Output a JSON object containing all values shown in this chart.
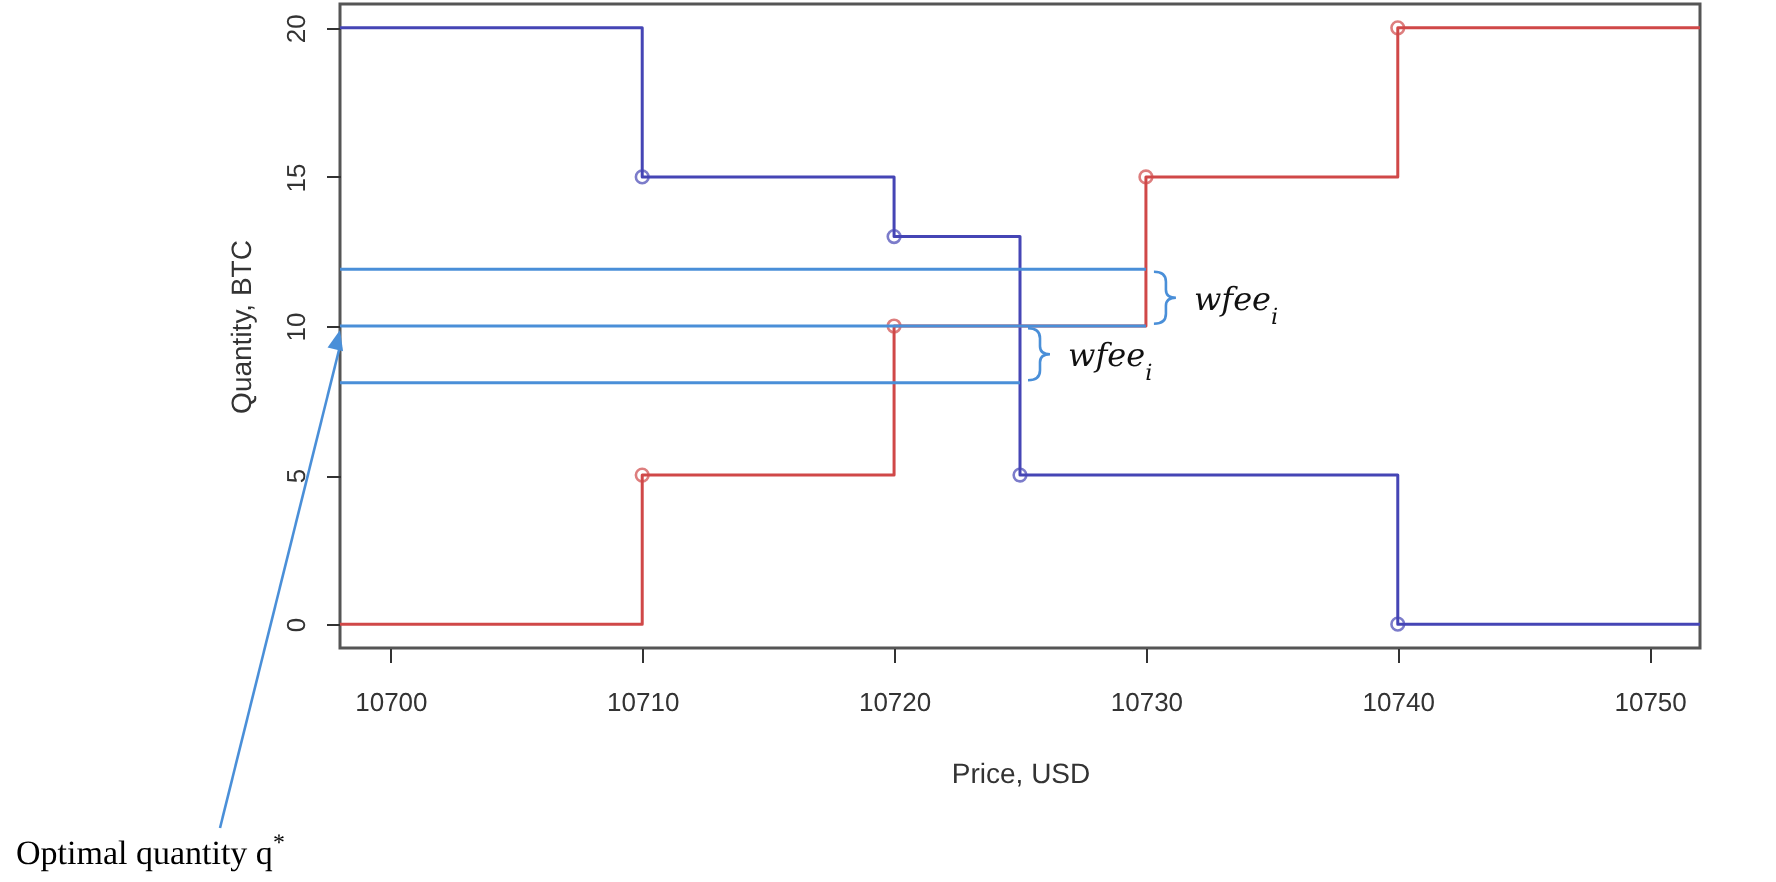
{
  "chart_data": {
    "type": "step",
    "xlabel": "Price, USD",
    "ylabel": "Quantity, BTC",
    "xlim": [
      10698,
      10752
    ],
    "ylim": [
      -0.8,
      20.8
    ],
    "xticks": [
      10700,
      10710,
      10720,
      10730,
      10740,
      10750
    ],
    "yticks": [
      0,
      5,
      10,
      15,
      20
    ],
    "grid": false,
    "series": [
      {
        "marker": "circle",
        "color": "#4545b5",
        "x": [
          10698,
          10710,
          10720,
          10725,
          10740,
          10752
        ],
        "values": [
          20,
          15,
          13,
          5,
          0,
          0
        ]
      },
      {
        "marker": "circle",
        "color": "#d04848",
        "x": [
          10698,
          10710,
          10720,
          10730,
          10740,
          10752
        ],
        "values": [
          0,
          5,
          10,
          15,
          20,
          20
        ]
      },
      {
        "type": "line",
        "color": "#4a8fd8",
        "x": [
          10698,
          10730
        ],
        "values": [
          11.9,
          11.9
        ]
      },
      {
        "type": "line",
        "color": "#4a8fd8",
        "x": [
          10698,
          10730
        ],
        "values": [
          10,
          10
        ]
      },
      {
        "type": "line",
        "color": "#4a8fd8",
        "x": [
          10698,
          10725
        ],
        "values": [
          8.1,
          8.1
        ]
      }
    ],
    "annotations": [
      {
        "text": "wfee$_{i}$",
        "x": 10730,
        "y": 10.95
      },
      {
        "text": "wfee$_{i}$",
        "x": 10725,
        "y": 9.05
      },
      "Optimal quantity q$^{*}$"
    ]
  }
}
